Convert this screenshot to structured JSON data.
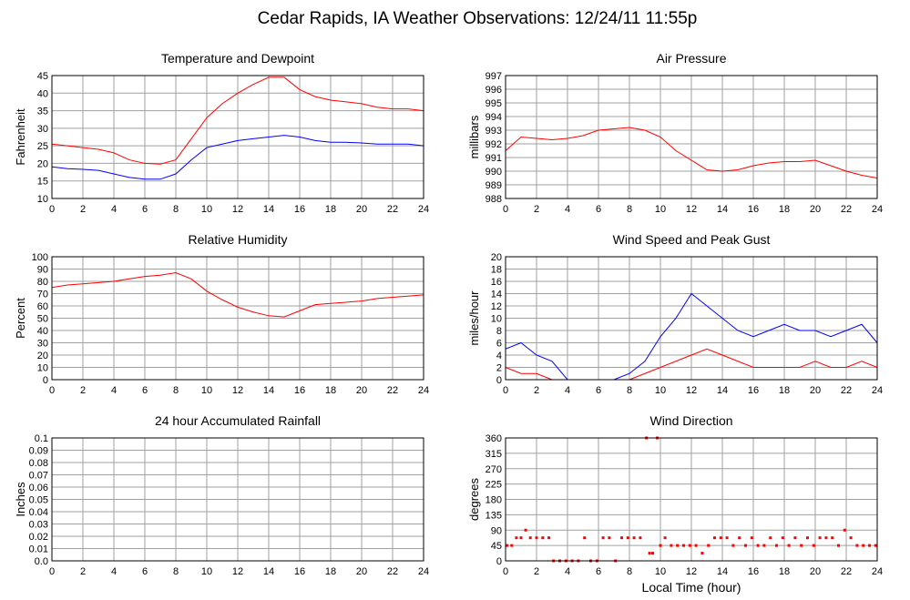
{
  "title": "Cedar Rapids, IA Weather Observations: 12/24/11 11:55p",
  "chart_data": [
    {
      "type": "line",
      "title": "Temperature and Dewpoint",
      "ylabel": "Fahrenheit",
      "x": [
        0,
        1,
        2,
        3,
        4,
        5,
        6,
        7,
        8,
        9,
        10,
        11,
        12,
        13,
        14,
        15,
        16,
        17,
        18,
        19,
        20,
        21,
        22,
        23,
        24
      ],
      "series": [
        {
          "color": "#ff0000",
          "values": [
            25.5,
            25,
            24.5,
            24,
            23,
            21,
            20,
            19.8,
            21,
            27,
            33,
            37,
            40,
            42.5,
            44.5,
            44.5,
            41,
            39,
            38,
            37.5,
            37,
            36,
            35.5,
            35.5,
            35
          ]
        },
        {
          "color": "#0000ff",
          "values": [
            19,
            18.5,
            18.3,
            18,
            17,
            16,
            15.5,
            15.5,
            17,
            21,
            24.5,
            25.5,
            26.5,
            27,
            27.5,
            28,
            27.5,
            26.5,
            26,
            26,
            25.8,
            25.5,
            25.5,
            25.5,
            25
          ]
        }
      ],
      "xlim": [
        0,
        24
      ],
      "xticks": [
        0,
        2,
        4,
        6,
        8,
        10,
        12,
        14,
        16,
        18,
        20,
        22,
        24
      ],
      "ylim": [
        10,
        45
      ],
      "yticks": [
        10,
        15,
        20,
        25,
        30,
        35,
        40,
        45
      ],
      "grid": true
    },
    {
      "type": "line",
      "title": "Air Pressure",
      "ylabel": "millibars",
      "x": [
        0,
        1,
        2,
        3,
        4,
        5,
        6,
        7,
        8,
        9,
        10,
        11,
        12,
        13,
        14,
        15,
        16,
        17,
        18,
        19,
        20,
        21,
        22,
        23,
        24
      ],
      "series": [
        {
          "color": "#ff0000",
          "values": [
            991.5,
            992.5,
            992.4,
            992.3,
            992.4,
            992.6,
            993,
            993.1,
            993.2,
            993,
            992.5,
            991.5,
            990.8,
            990.1,
            990,
            990.1,
            990.4,
            990.6,
            990.7,
            990.7,
            990.8,
            990.4,
            990,
            989.7,
            989.5
          ]
        }
      ],
      "xlim": [
        0,
        24
      ],
      "xticks": [
        0,
        2,
        4,
        6,
        8,
        10,
        12,
        14,
        16,
        18,
        20,
        22,
        24
      ],
      "ylim": [
        988,
        997
      ],
      "yticks": [
        988,
        989,
        990,
        991,
        992,
        993,
        994,
        995,
        996,
        997
      ],
      "grid": true
    },
    {
      "type": "line",
      "title": "Relative Humidity",
      "ylabel": "Percent",
      "x": [
        0,
        1,
        2,
        3,
        4,
        5,
        6,
        7,
        8,
        9,
        10,
        11,
        12,
        13,
        14,
        15,
        16,
        17,
        18,
        19,
        20,
        21,
        22,
        23,
        24
      ],
      "series": [
        {
          "color": "#ff0000",
          "values": [
            75,
            77,
            78,
            79,
            80,
            82,
            84,
            85,
            87,
            82,
            72,
            65,
            59,
            55,
            52,
            51,
            56,
            61,
            62,
            63,
            64,
            66,
            67,
            68,
            69
          ]
        }
      ],
      "xlim": [
        0,
        24
      ],
      "xticks": [
        0,
        2,
        4,
        6,
        8,
        10,
        12,
        14,
        16,
        18,
        20,
        22,
        24
      ],
      "ylim": [
        0,
        100
      ],
      "yticks": [
        0,
        10,
        20,
        30,
        40,
        50,
        60,
        70,
        80,
        90,
        100
      ],
      "grid": true
    },
    {
      "type": "line",
      "title": "Wind Speed and Peak Gust",
      "ylabel": "miles/hour",
      "x": [
        0,
        1,
        2,
        3,
        4,
        5,
        6,
        7,
        8,
        9,
        10,
        11,
        12,
        13,
        14,
        15,
        16,
        17,
        18,
        19,
        20,
        21,
        22,
        23,
        24
      ],
      "series": [
        {
          "color": "#0000ff",
          "values": [
            5,
            6,
            4,
            3,
            0,
            0,
            0,
            0,
            1,
            3,
            7,
            10,
            14,
            12,
            10,
            8,
            7,
            8,
            9,
            8,
            8,
            7,
            8,
            9,
            6
          ]
        },
        {
          "color": "#ff0000",
          "values": [
            2,
            1,
            1,
            0,
            0,
            0,
            0,
            0,
            0,
            1,
            2,
            3,
            4,
            5,
            4,
            3,
            2,
            2,
            2,
            2,
            3,
            2,
            2,
            3,
            2
          ]
        }
      ],
      "xlim": [
        0,
        24
      ],
      "xticks": [
        0,
        2,
        4,
        6,
        8,
        10,
        12,
        14,
        16,
        18,
        20,
        22,
        24
      ],
      "ylim": [
        0,
        20
      ],
      "yticks": [
        0,
        2,
        4,
        6,
        8,
        10,
        12,
        14,
        16,
        18,
        20
      ],
      "grid": true
    },
    {
      "type": "line",
      "title": "24 hour Accumulated Rainfall",
      "ylabel": "Inches",
      "x": [
        0,
        24
      ],
      "series": [
        {
          "color": "#ff0000",
          "values": [
            0,
            0
          ]
        }
      ],
      "xlim": [
        0,
        24
      ],
      "xticks": [
        0,
        2,
        4,
        6,
        8,
        10,
        12,
        14,
        16,
        18,
        20,
        22,
        24
      ],
      "ylim": [
        0,
        0.1
      ],
      "yticks": [
        {
          "value": 0,
          "label": "0.0"
        },
        0.01,
        0.02,
        0.03,
        0.04,
        0.05,
        0.06,
        0.07,
        0.08,
        0.09,
        0.1
      ],
      "grid": true
    },
    {
      "type": "scatter",
      "title": "Wind Direction",
      "ylabel": "degrees",
      "xlabel": "Local Time (hour)",
      "x": [
        0.1,
        0.4,
        0.7,
        1.0,
        1.3,
        1.6,
        2.0,
        2.4,
        2.8,
        3.1,
        3.5,
        3.9,
        4.3,
        4.7,
        5.1,
        5.5,
        5.9,
        6.3,
        6.7,
        7.1,
        7.5,
        7.9,
        8.3,
        8.7,
        9.1,
        9.3,
        9.5,
        9.8,
        10.0,
        10.3,
        10.7,
        11.1,
        11.5,
        11.9,
        12.3,
        12.7,
        13.1,
        13.5,
        13.9,
        14.3,
        14.7,
        15.1,
        15.5,
        15.9,
        16.3,
        16.7,
        17.1,
        17.5,
        17.9,
        18.3,
        18.7,
        19.1,
        19.5,
        19.9,
        20.3,
        20.7,
        21.1,
        21.5,
        21.9,
        22.3,
        22.7,
        23.1,
        23.5,
        23.9
      ],
      "values": [
        45,
        45,
        67.5,
        67.5,
        90,
        67.5,
        67.5,
        67.5,
        67.5,
        0,
        0,
        0,
        0,
        0,
        67.5,
        0,
        0,
        67.5,
        67.5,
        0,
        67.5,
        67.5,
        67.5,
        67.5,
        360,
        22.5,
        22.5,
        360,
        45,
        67.5,
        45,
        45,
        45,
        45,
        45,
        22.5,
        45,
        67.5,
        67.5,
        67.5,
        45,
        67.5,
        45,
        67.5,
        45,
        45,
        67.5,
        45,
        67.5,
        45,
        67.5,
        45,
        67.5,
        45,
        67.5,
        67.5,
        67.5,
        45,
        90,
        67.5,
        45,
        45,
        45,
        45
      ],
      "color": "#ff0000",
      "xlim": [
        0,
        24
      ],
      "xticks": [
        0,
        2,
        4,
        6,
        8,
        10,
        12,
        14,
        16,
        18,
        20,
        22,
        24
      ],
      "ylim": [
        0,
        360
      ],
      "yticks": [
        0,
        45,
        90,
        135,
        180,
        225,
        270,
        315,
        360
      ],
      "grid": true
    }
  ]
}
